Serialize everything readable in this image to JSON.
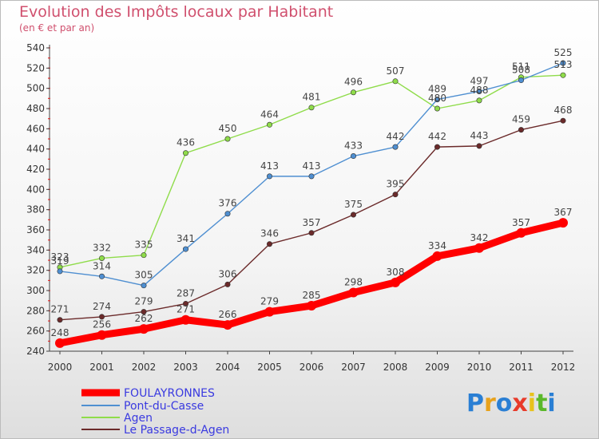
{
  "header": {
    "title": "Evolution des Impôts locaux par Habitant",
    "subtitle": "(en € et par an)"
  },
  "brand": {
    "logo_text": "Proxiti"
  },
  "chart_data": {
    "type": "line",
    "x": [
      "2000",
      "2001",
      "2002",
      "2003",
      "2004",
      "2005",
      "2006",
      "2007",
      "2008",
      "2009",
      "2010",
      "2011",
      "2012"
    ],
    "ylim": [
      240,
      540
    ],
    "yticks": [
      240,
      260,
      280,
      300,
      320,
      340,
      360,
      380,
      400,
      420,
      440,
      460,
      480,
      500,
      520,
      540
    ],
    "grid": false,
    "legend_position": "bottom-left",
    "series": [
      {
        "name": "FOULAYRONNES",
        "color": "#ff0000",
        "values": [
          248,
          256,
          262,
          271,
          266,
          279,
          285,
          298,
          308,
          334,
          342,
          357,
          367
        ]
      },
      {
        "name": "Pont-du-Casse",
        "color": "#4f8fd1",
        "values": [
          319,
          314,
          305,
          341,
          376,
          413,
          413,
          433,
          442,
          489,
          497,
          508,
          525
        ]
      },
      {
        "name": "Agen",
        "color": "#8fdc4a",
        "values": [
          323,
          332,
          335,
          436,
          450,
          464,
          481,
          496,
          507,
          480,
          488,
          511,
          513
        ]
      },
      {
        "name": "Le Passage-d-Agen",
        "color": "#6b2a2a",
        "values": [
          271,
          274,
          279,
          287,
          306,
          346,
          357,
          375,
          395,
          442,
          443,
          459,
          468
        ]
      }
    ]
  }
}
